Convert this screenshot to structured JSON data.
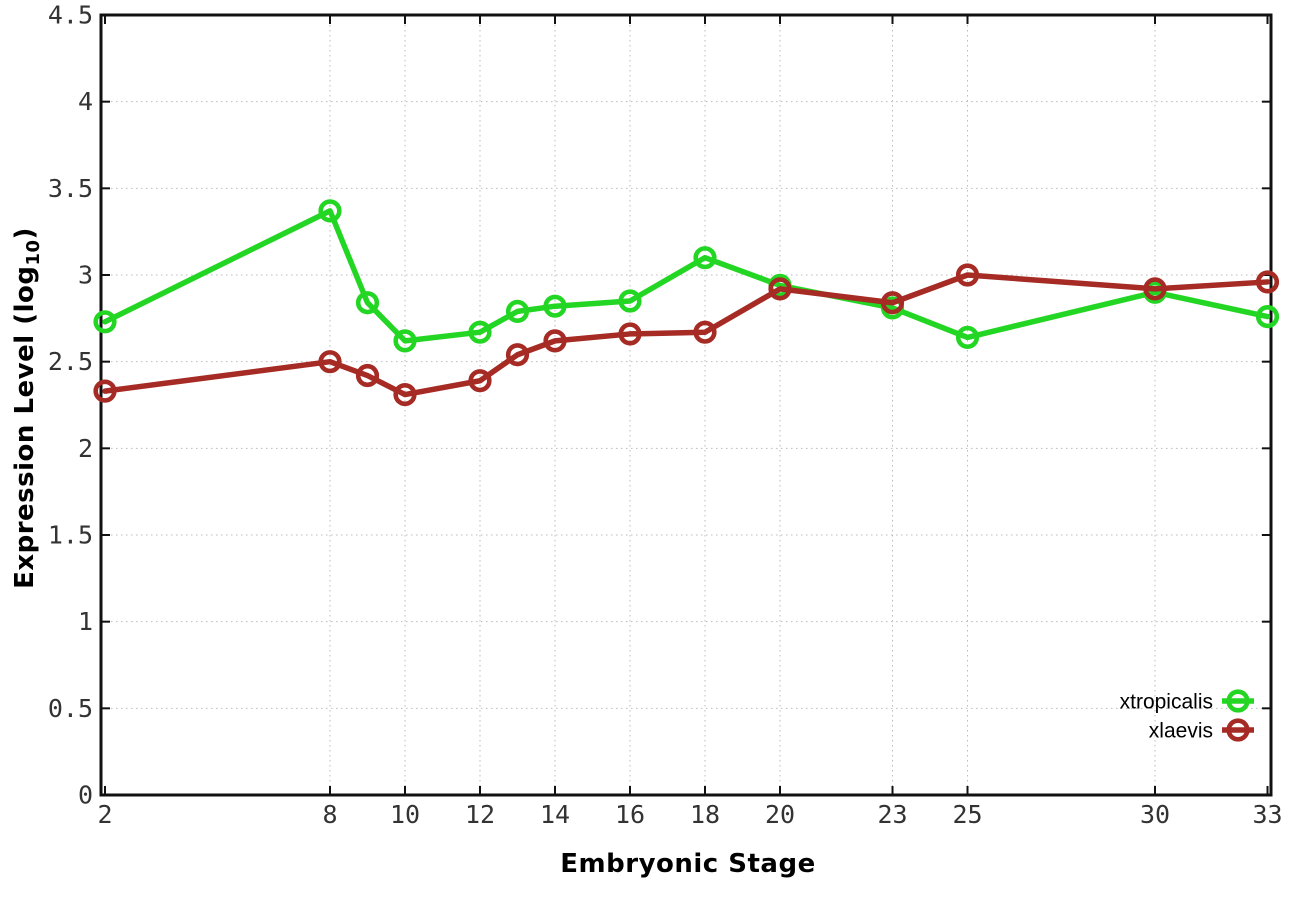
{
  "page": {
    "background": "#ffffff"
  },
  "axis": {
    "x_label": "Embryonic Stage",
    "y_label_main": "Expression Level (log",
    "y_label_sub": "10",
    "y_label_suffix": ")"
  },
  "chart_data": {
    "type": "line",
    "title": "",
    "xlabel": "Embryonic Stage",
    "ylabel": "Expression Level (log10)",
    "xlim": [
      2,
      33
    ],
    "ylim": [
      0,
      4.5
    ],
    "grid": true,
    "grid_style": "dotted",
    "legend_position": "inside-bottom-right",
    "x_ticks": [
      2,
      8,
      10,
      12,
      14,
      16,
      18,
      20,
      23,
      25,
      30,
      33
    ],
    "x_tick_labels": [
      "2",
      "8",
      "10",
      "12",
      "14",
      "16",
      "18",
      "20",
      "23",
      "25",
      "30",
      "33"
    ],
    "y_ticks": [
      0,
      0.5,
      1,
      1.5,
      2,
      2.5,
      3,
      3.5,
      4,
      4.5
    ],
    "y_tick_labels": [
      "0",
      "0.5",
      "1",
      "1.5",
      "2",
      "2.5",
      "3",
      "3.5",
      "4",
      "4.5"
    ],
    "x": [
      2,
      8,
      9,
      10,
      12,
      13,
      14,
      16,
      18,
      20,
      23,
      25,
      30,
      33
    ],
    "series": [
      {
        "name": "xtropicalis",
        "color": "#24d624",
        "marker": "open-circle",
        "values": [
          2.73,
          3.37,
          2.84,
          2.62,
          2.67,
          2.79,
          2.82,
          2.85,
          3.1,
          2.94,
          2.81,
          2.64,
          2.9,
          2.76
        ]
      },
      {
        "name": "xlaevis",
        "color": "#a52b24",
        "marker": "open-circle",
        "values": [
          2.33,
          2.5,
          2.42,
          2.31,
          2.39,
          2.54,
          2.62,
          2.66,
          2.67,
          2.92,
          2.84,
          3.0,
          2.92,
          2.96
        ]
      }
    ],
    "colors": {
      "grid": "#bbbbbb",
      "border": "#111111",
      "tick_label": "#333333"
    }
  }
}
